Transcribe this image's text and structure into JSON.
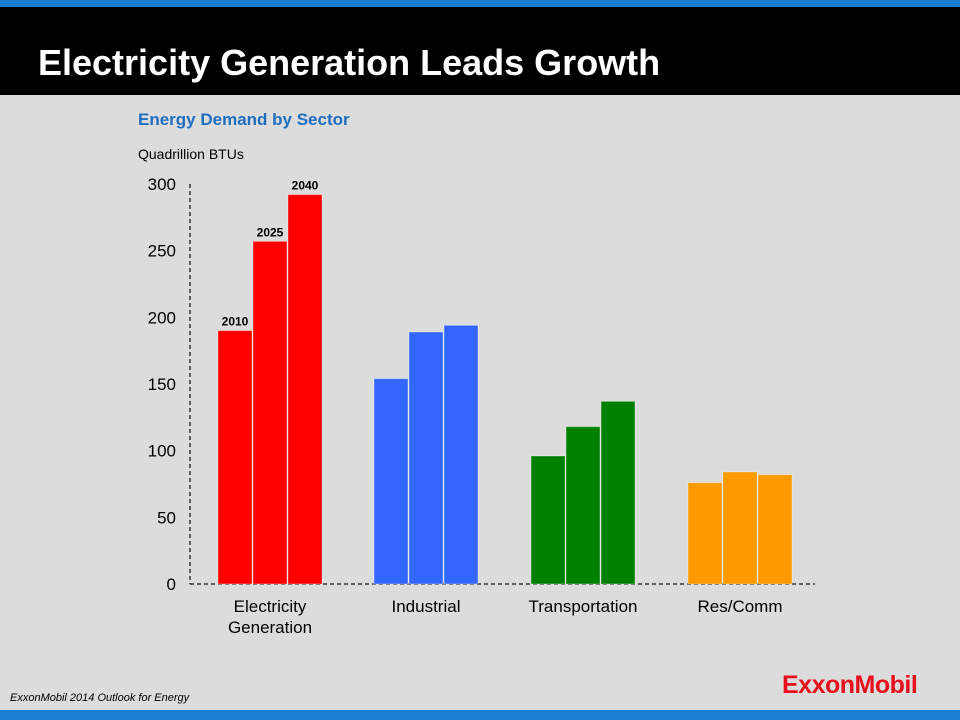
{
  "slide": {
    "title": "Electricity Generation Leads Growth",
    "subtitle": "Energy Demand by Sector",
    "units": "Quadrillion BTUs",
    "footer": "ExxonMobil 2014 Outlook for Energy",
    "logo_text": "ExxonMobil",
    "colors": {
      "stripe": "#1a7fd0",
      "titlebar": "#000000",
      "subtitle": "#1f6fc0",
      "background": "#dcdcdc",
      "logo": "#e8101c"
    }
  },
  "chart_data": {
    "type": "bar",
    "title": "Energy Demand by Sector",
    "ylabel": "Quadrillion BTUs",
    "ylim": [
      0,
      300
    ],
    "yticks": [
      0,
      50,
      100,
      150,
      200,
      250,
      300
    ],
    "categories": [
      {
        "name": "Electricity Generation",
        "lines": [
          "Electricity",
          "Generation"
        ],
        "color": "#ff0000"
      },
      {
        "name": "Industrial",
        "lines": [
          "Industrial"
        ],
        "color": "#3366ff"
      },
      {
        "name": "Transportation",
        "lines": [
          "Transportation"
        ],
        "color": "#008000"
      },
      {
        "name": "Res/Comm",
        "lines": [
          "Res/Comm"
        ],
        "color": "#ff9900"
      }
    ],
    "years": [
      "2010",
      "2025",
      "2040"
    ],
    "year_labels_on_category": 0,
    "values": [
      [
        190,
        257,
        292
      ],
      [
        154,
        189,
        194
      ],
      [
        96,
        118,
        137
      ],
      [
        76,
        84,
        82
      ]
    ],
    "grid": false
  }
}
